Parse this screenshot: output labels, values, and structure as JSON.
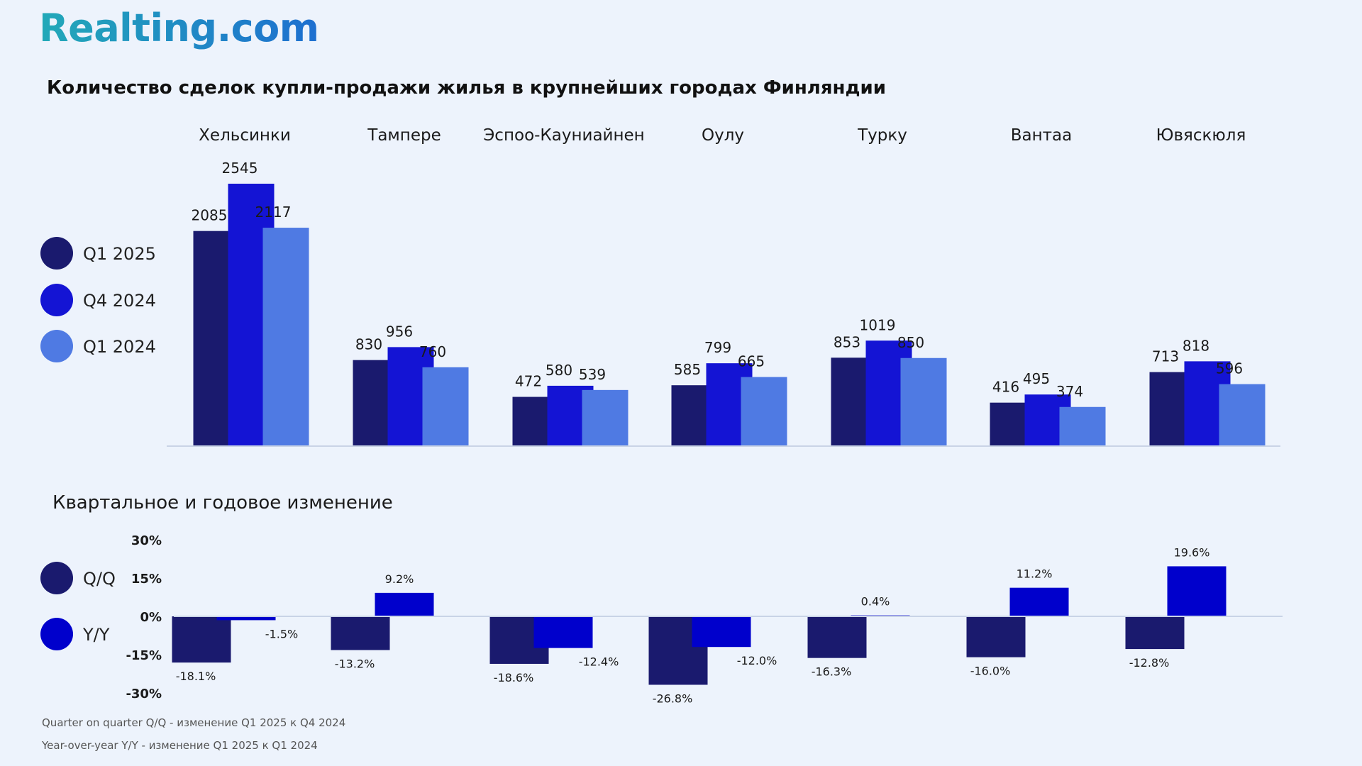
{
  "brand": {
    "name": "Realting.com"
  },
  "colors": {
    "background": "#edf3fc",
    "q1_2025": "#1a1a6e",
    "q4_2024": "#1414d4",
    "q1_2024": "#4f7ae3",
    "qq": "#1a1a6e",
    "yy": "#0000cc",
    "logo_start": "#22a9b8",
    "logo_end": "#1e6fd0",
    "axis": "#c9d3e6"
  },
  "chart_data": [
    {
      "type": "bar",
      "title": "Количество сделок купли-продажи жилья в крупнейших городах Финляндии",
      "categories": [
        "Хельсинки",
        "Тампере",
        "Эспоо-Кауниайнен",
        "Оулу",
        "Турку",
        "Вантаа",
        "Ювяскюля"
      ],
      "series": [
        {
          "name": "Q1 2025",
          "values": [
            2085,
            830,
            472,
            585,
            853,
            416,
            713
          ]
        },
        {
          "name": "Q4 2024",
          "values": [
            2545,
            956,
            580,
            799,
            1019,
            495,
            818
          ]
        },
        {
          "name": "Q1 2024",
          "values": [
            2117,
            760,
            539,
            665,
            850,
            374,
            596
          ]
        }
      ],
      "ylim": [
        0,
        2545
      ],
      "grid": false,
      "legend": "left"
    },
    {
      "type": "bar",
      "title": "Квартальное и годовое изменение",
      "categories": [
        "Хельсинки",
        "Тампере",
        "Эспоо-Кауниайнен",
        "Оулу",
        "Турку",
        "Вантаа",
        "Ювяскюля"
      ],
      "series": [
        {
          "name": "Q/Q",
          "values": [
            -18.1,
            -13.2,
            -18.6,
            -26.8,
            -16.3,
            -16.0,
            -12.8
          ]
        },
        {
          "name": "Y/Y",
          "values": [
            -1.5,
            9.2,
            -12.4,
            -12.0,
            0.4,
            11.2,
            19.6
          ]
        }
      ],
      "y_ticks": [
        "30%",
        "15%",
        "0%",
        "-15%",
        "-30%"
      ],
      "ylim": [
        -30,
        30
      ],
      "grid": false,
      "legend": "left",
      "notes": [
        "Quarter on quarter Q/Q  - изменение Q1 2025 к Q4 2024",
        "Year-over-year Y/Y - изменение Q1 2025 к Q1 2024"
      ]
    }
  ]
}
